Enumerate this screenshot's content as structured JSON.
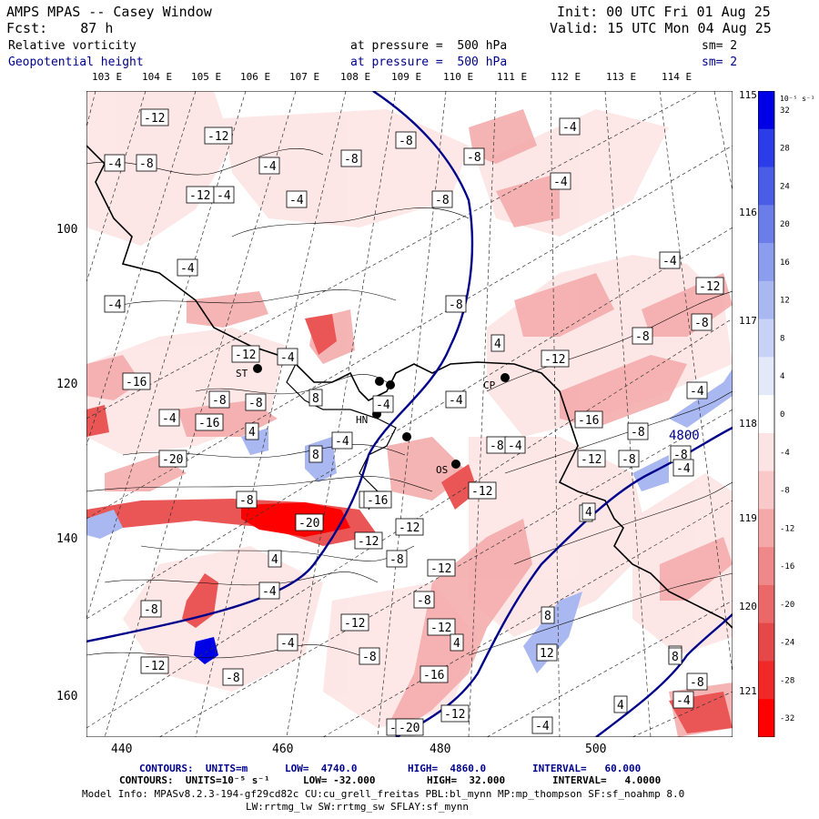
{
  "header": {
    "title": "AMPS MPAS -- Casey Window",
    "init": "Init: 00 UTC Fri 01 Aug 25",
    "forecast": "Fcst:    87 h",
    "valid": "Valid: 15 UTC Mon 04 Aug 25",
    "field1_name": "Relative vorticity",
    "field1_level": "at pressure =  500 hPa",
    "field1_sm": "sm= 2",
    "field2_name": "Geopotential height",
    "field2_level": "at pressure =  500 hPa",
    "field2_sm": "sm= 2"
  },
  "axes": {
    "top_lon_labels": [
      "103 E",
      "104 E",
      "105 E",
      "106 E",
      "107 E",
      "108 E",
      "109 E",
      "110 E",
      "111 E",
      "112 E",
      "113 E",
      "114 E"
    ],
    "right_lon_labels": [
      "115 E",
      "116 E",
      "117 E",
      "118 E",
      "119 E",
      "120 E",
      "121 E"
    ],
    "left_y_ticks": [
      "100",
      "120",
      "140",
      "160"
    ],
    "bottom_x_ticks": [
      "440",
      "460",
      "480",
      "500"
    ]
  },
  "colorbar": {
    "units": "10⁻⁵ s⁻¹",
    "labels": [
      "32",
      "28",
      "24",
      "20",
      "16",
      "12",
      "8",
      "4",
      "0",
      "-4",
      "-8",
      "-12",
      "-16",
      "-20",
      "-24",
      "-28",
      "-32"
    ],
    "colors": [
      "#0000e6",
      "#2a3de8",
      "#4a5de6",
      "#6a7de8",
      "#8a9dee",
      "#aab8f2",
      "#c8d2f6",
      "#e4e9fa",
      "#ffffff",
      "#fde4e4",
      "#f9c8c8",
      "#f4a8a8",
      "#ef8888",
      "#ea6868",
      "#e54848",
      "#f02828",
      "#ff0000"
    ]
  },
  "contour_labels": [
    "-12",
    "-12",
    "-8",
    "-4",
    "-4",
    "-8",
    "-4",
    "-4",
    "-12",
    "-8",
    "-8",
    "-4",
    "-4",
    "-8",
    "-4",
    "-4",
    "-12",
    "-8",
    "-4",
    "-12",
    "-8",
    "-8",
    "-4",
    "4",
    "-12",
    "-8",
    "-16",
    "-8",
    "-4",
    "8",
    "-4",
    "-4",
    "-16",
    "-8",
    "-12",
    "-4",
    "-8",
    "-16",
    "-12",
    "-8",
    "-20",
    "4",
    "8",
    "-4",
    "-8",
    "-4",
    "-8",
    "-16",
    "-12",
    "8",
    "-4",
    "4",
    "-20",
    "-16",
    "-12",
    "4",
    "-12",
    "-8",
    "-4",
    "-8",
    "-12",
    "-12",
    "-8",
    "8",
    "-4",
    "4",
    "-12",
    "-8",
    "-16",
    "-20",
    "4",
    "-20",
    "4",
    "-4",
    "-12",
    "-8",
    "12",
    "8",
    "-8",
    "-4"
  ],
  "stations": [
    "CP",
    "ST",
    "HN",
    "OS"
  ],
  "annotations": {
    "geo_label": "4800",
    "contours1_prefix": "CONTOURS:  UNITS=m",
    "contours1_low": "LOW=  4740.0",
    "contours1_high": "HIGH=  4860.0",
    "contours1_interval": "INTERVAL=   60.000",
    "contours2_prefix": "CONTOURS:  UNITS=10⁻⁵ s⁻¹",
    "contours2_low": "LOW= -32.000",
    "contours2_high": "HIGH=  32.000",
    "contours2_interval": "INTERVAL=   4.0000",
    "model_info": "Model Info: MPASv8.2.3-194-gf29cd82c CU:cu_grell_freitas PBL:bl_mynn MP:mp_thompson SF:sf_noahmp 8.0",
    "model_info2": "LW:rrtmg_lw SW:rrtmg_sw SFLAY:sf_mynn"
  }
}
